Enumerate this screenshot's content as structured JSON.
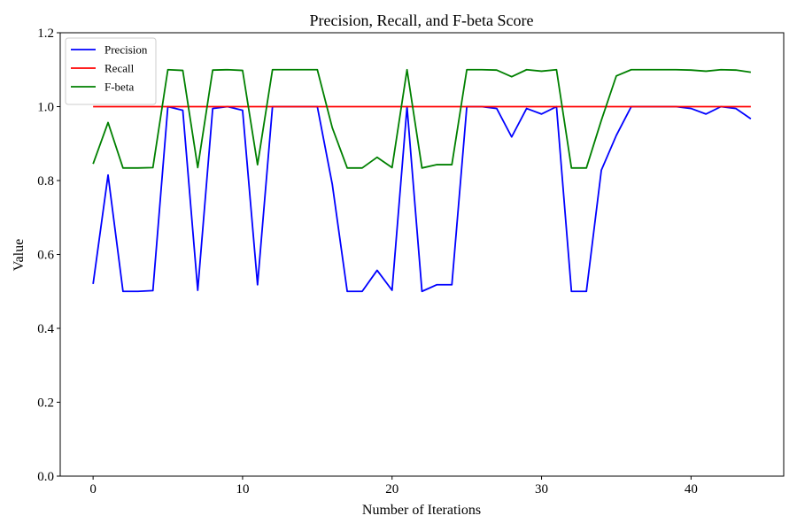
{
  "chart_data": {
    "type": "line",
    "title": "Precision, Recall, and F-beta Score",
    "xlabel": "Number of Iterations",
    "ylabel": "Value",
    "xlim": [
      -2.2,
      46.2
    ],
    "ylim": [
      0.0,
      1.2
    ],
    "x_ticks": [
      0,
      10,
      20,
      30,
      40
    ],
    "y_ticks": [
      0.0,
      0.2,
      0.4,
      0.6,
      0.8,
      1.0,
      1.2
    ],
    "grid": false,
    "legend_position": "top-left",
    "x": [
      0,
      1,
      2,
      3,
      4,
      5,
      6,
      7,
      8,
      9,
      10,
      11,
      12,
      13,
      14,
      15,
      16,
      17,
      18,
      19,
      20,
      21,
      22,
      23,
      24,
      25,
      26,
      27,
      28,
      29,
      30,
      31,
      32,
      33,
      34,
      35,
      36,
      37,
      38,
      39,
      40,
      41,
      42,
      43,
      44
    ],
    "series": [
      {
        "name": "Precision",
        "color": "#0000ff",
        "values": [
          0.52,
          0.815,
          0.5,
          0.5,
          0.502,
          1.0,
          0.99,
          0.503,
          0.995,
          1.0,
          0.99,
          0.518,
          1.0,
          1.0,
          1.0,
          1.0,
          0.79,
          0.5,
          0.5,
          0.557,
          0.503,
          1.0,
          0.5,
          0.518,
          0.518,
          1.0,
          1.0,
          0.995,
          0.918,
          0.995,
          0.98,
          1.0,
          0.5,
          0.5,
          0.828,
          0.922,
          1.0,
          1.0,
          1.0,
          1.0,
          0.995,
          0.98,
          1.0,
          0.995,
          0.967
        ]
      },
      {
        "name": "Recall",
        "color": "#ff0000",
        "values": [
          1.0,
          1.0,
          1.0,
          1.0,
          1.0,
          1.0,
          1.0,
          1.0,
          1.0,
          1.0,
          1.0,
          1.0,
          1.0,
          1.0,
          1.0,
          1.0,
          1.0,
          1.0,
          1.0,
          1.0,
          1.0,
          1.0,
          1.0,
          1.0,
          1.0,
          1.0,
          1.0,
          1.0,
          1.0,
          1.0,
          1.0,
          1.0,
          1.0,
          1.0,
          1.0,
          1.0,
          1.0,
          1.0,
          1.0,
          1.0,
          1.0,
          1.0,
          1.0,
          1.0,
          1.0
        ]
      },
      {
        "name": "F-beta",
        "color": "#008000",
        "values": [
          0.845,
          0.957,
          0.834,
          0.834,
          0.835,
          1.1,
          1.098,
          0.835,
          1.099,
          1.1,
          1.098,
          0.843,
          1.1,
          1.1,
          1.1,
          1.1,
          0.943,
          0.834,
          0.834,
          0.863,
          0.835,
          1.1,
          0.834,
          0.843,
          0.843,
          1.1,
          1.1,
          1.099,
          1.081,
          1.1,
          1.096,
          1.1,
          0.834,
          0.834,
          0.963,
          1.083,
          1.1,
          1.1,
          1.1,
          1.1,
          1.099,
          1.096,
          1.1,
          1.099,
          1.093
        ]
      }
    ]
  }
}
